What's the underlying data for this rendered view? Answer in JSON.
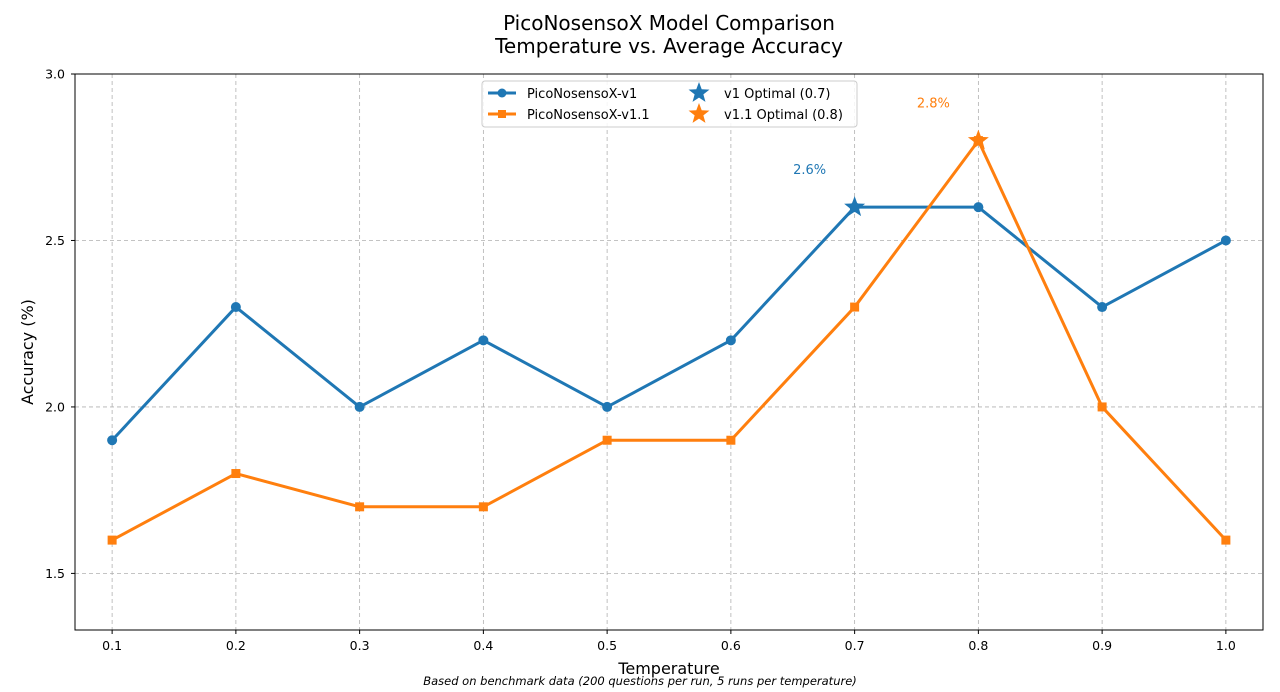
{
  "chart_data": {
    "type": "line",
    "title": "PicoNosensoX Model Comparison",
    "subtitle": "Temperature vs. Average Accuracy",
    "xlabel": "Temperature",
    "ylabel": "Accuracy (%)",
    "x": [
      0.1,
      0.2,
      0.3,
      0.4,
      0.5,
      0.6,
      0.7,
      0.8,
      0.9,
      1.0
    ],
    "x_tick_labels": [
      "0.1",
      "0.2",
      "0.3",
      "0.4",
      "0.5",
      "0.6",
      "0.7",
      "0.8",
      "0.9",
      "1.0"
    ],
    "y_ticks": [
      1.5,
      2.0,
      2.5,
      3.0
    ],
    "y_tick_labels": [
      "1.5",
      "2.0",
      "2.5",
      "3.0"
    ],
    "xlim": [
      0.07,
      1.03
    ],
    "ylim": [
      1.33,
      3.0
    ],
    "grid": true,
    "legend_position": "top-center",
    "series": [
      {
        "name": "PicoNosensoX-v1",
        "color": "#1f77b4",
        "marker": "circle",
        "values": [
          1.9,
          2.3,
          2.0,
          2.2,
          2.0,
          2.2,
          2.6,
          2.6,
          2.3,
          2.5
        ]
      },
      {
        "name": "PicoNosensoX-v1.1",
        "color": "#ff7f0e",
        "marker": "square",
        "values": [
          1.6,
          1.8,
          1.7,
          1.7,
          1.9,
          1.9,
          2.3,
          2.8,
          2.0,
          1.6
        ]
      }
    ],
    "optimal_points": [
      {
        "name": "v1 Optimal (0.7)",
        "x": 0.7,
        "y": 2.6,
        "color": "#1f77b4",
        "label": "2.6%"
      },
      {
        "name": "v1.1 Optimal (0.8)",
        "x": 0.8,
        "y": 2.8,
        "color": "#ff7f0e",
        "label": "2.8%"
      }
    ],
    "footnote": "Based on benchmark data (200 questions per run, 5 runs per temperature)"
  }
}
